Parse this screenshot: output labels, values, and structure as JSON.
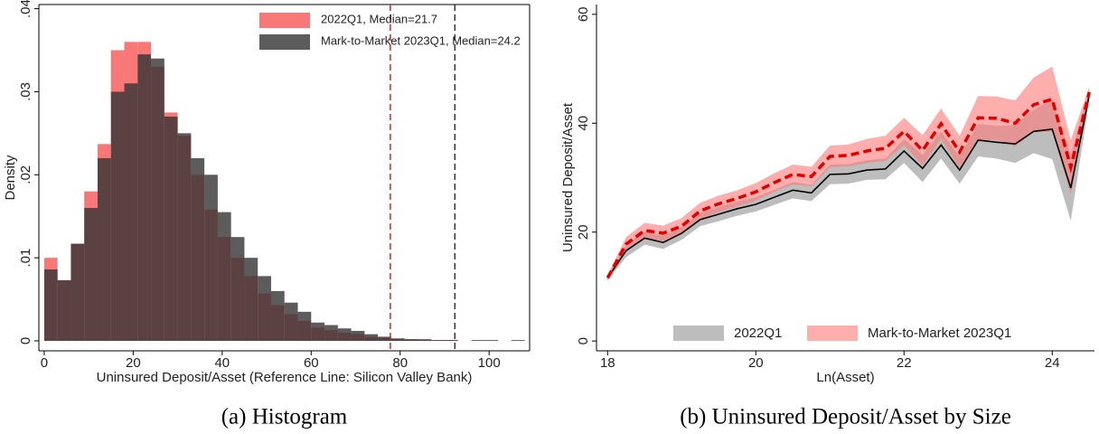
{
  "chart_data": [
    {
      "type": "histogram",
      "xlabel": "Uninsured Deposit/Asset (Reference Line: Silicon Valley Bank)",
      "ylabel": "Density",
      "caption": "(a) Histogram",
      "bins": [
        0,
        3,
        6,
        9,
        12,
        15,
        18,
        21,
        24,
        27,
        30,
        33,
        36,
        39,
        42,
        45,
        48,
        51,
        54,
        57,
        60,
        63,
        66,
        69,
        72,
        75,
        78,
        81,
        84,
        87,
        90,
        93,
        96,
        99,
        102,
        105,
        108
      ],
      "series": [
        {
          "name": "2022Q1, Median=21.7",
          "color": "#f87878",
          "values": [
            0.01,
            0.0073,
            0.0117,
            0.018,
            0.0237,
            0.035,
            0.036,
            0.036,
            0.033,
            0.0275,
            0.0247,
            0.02,
            0.0158,
            0.0125,
            0.01,
            0.0078,
            0.0057,
            0.0043,
            0.0032,
            0.0024,
            0.0016,
            0.0013,
            0.001,
            0.0008,
            0.0005,
            0.0004,
            0.0002,
            0.0002,
            0.0001,
            0.0001,
            0.0001,
            0,
            0,
            0,
            0,
            0
          ]
        },
        {
          "name": "Mark-to-Market 2023Q1, Median=24.2",
          "color": "rgba(51,51,51,0.8)",
          "values": [
            0.0086,
            0.0073,
            0.0117,
            0.016,
            0.022,
            0.03,
            0.031,
            0.0345,
            0.034,
            0.027,
            0.025,
            0.022,
            0.02,
            0.0155,
            0.0125,
            0.01,
            0.0078,
            0.006,
            0.0046,
            0.0035,
            0.0022,
            0.0019,
            0.0015,
            0.0012,
            0.0008,
            0.0005,
            0.0003,
            0.0002,
            0.0002,
            0.0001,
            0.0001,
            0,
            0.0001,
            0.0001,
            0,
            0.0001
          ]
        }
      ],
      "reference_lines": [
        {
          "value": 77.8,
          "color": "#d62728"
        },
        {
          "value": 92.3,
          "color": "#333333"
        }
      ],
      "xlim": [
        -1.2,
        109.1
      ],
      "xticks": [
        0,
        20,
        40,
        60,
        80,
        100
      ],
      "ylim": [
        -0.0012,
        0.0405
      ],
      "yticks": [
        0,
        {
          "value": 0.01,
          "label": ".01"
        },
        {
          "value": 0.02,
          "label": ".02"
        },
        {
          "value": 0.03,
          "label": ".03"
        },
        {
          "value": 0.04,
          "label": ".04"
        }
      ],
      "legend": "top-right"
    },
    {
      "type": "line",
      "xlabel": "Ln(Asset)",
      "ylabel": "Uninsured Deposit/Asset",
      "caption": "(b) Uninsured Deposit/Asset by Size",
      "x": [
        18,
        18.25,
        18.5,
        18.75,
        19,
        19.25,
        19.5,
        19.75,
        20,
        20.25,
        20.5,
        20.75,
        21,
        21.25,
        21.5,
        21.75,
        22,
        22.25,
        22.5,
        22.75,
        23,
        23.25,
        23.5,
        23.75,
        24,
        24.25,
        24.5
      ],
      "series": [
        {
          "name": "2022Q1",
          "color": "#000000",
          "band_color": "#bdbdbd",
          "dashed": false,
          "values": [
            11.6,
            16.6,
            18.9,
            18.1,
            19.8,
            22.3,
            23.3,
            24.3,
            25.1,
            26.4,
            27.7,
            27.2,
            30.6,
            30.7,
            31.4,
            31.6,
            34.9,
            31.7,
            36,
            31.4,
            36.9,
            36.5,
            36.2,
            38.5,
            38.9,
            28.1,
            45.2
          ],
          "lower": [
            11.1,
            15.4,
            17.7,
            16.9,
            18.6,
            21.1,
            22.0,
            23.0,
            23.8,
            25.0,
            26.2,
            25.7,
            28.8,
            28.9,
            29.6,
            29.7,
            32.7,
            29.2,
            33.5,
            28.9,
            33.9,
            33.5,
            32.7,
            34.5,
            33.4,
            22.1,
            44.2
          ],
          "upper": [
            12.1,
            17.8,
            20.1,
            19.3,
            21.0,
            23.5,
            24.6,
            25.6,
            26.4,
            27.8,
            29.2,
            28.7,
            32.4,
            32.5,
            33.2,
            33.5,
            37.1,
            34.2,
            38.5,
            33.9,
            39.9,
            39.5,
            39.7,
            42.5,
            44.4,
            34.1,
            46.2
          ]
        },
        {
          "name": "Mark-to-Market 2023Q1",
          "color": "#e00000",
          "band_color": "rgba(255,120,120,0.6)",
          "dashed": true,
          "values": [
            11.6,
            17.8,
            20.3,
            19.8,
            21.1,
            23.9,
            25.2,
            26.2,
            27.4,
            29.1,
            30.6,
            30.2,
            33.9,
            34.1,
            34.9,
            35.4,
            38.5,
            35,
            39.9,
            34.7,
            41,
            40.9,
            40,
            43.4,
            44.4,
            31.9,
            45.7
          ],
          "lower": [
            11.1,
            16.5,
            18.9,
            18.4,
            19.6,
            22.4,
            23.7,
            24.7,
            25.8,
            27.4,
            28.8,
            28.4,
            31.9,
            32.1,
            32.7,
            33.1,
            36.0,
            32.2,
            37.1,
            31.7,
            37,
            36.9,
            35.8,
            38.4,
            38.4,
            26.9,
            44.7
          ],
          "upper": [
            12.1,
            19.1,
            21.7,
            21.2,
            22.6,
            25.4,
            26.7,
            27.7,
            29.0,
            30.8,
            32.4,
            32.0,
            35.9,
            36.1,
            37.1,
            37.7,
            41.0,
            37.8,
            42.7,
            37.7,
            45,
            44.9,
            44.2,
            48.4,
            50.4,
            36.9,
            46.7
          ]
        }
      ],
      "xlim": [
        17.85,
        24.57
      ],
      "xticks": [
        18,
        20,
        22,
        24
      ],
      "ylim": [
        -1.8,
        61.8
      ],
      "yticks": [
        0,
        20,
        40,
        60
      ],
      "legend": "bottom"
    }
  ]
}
